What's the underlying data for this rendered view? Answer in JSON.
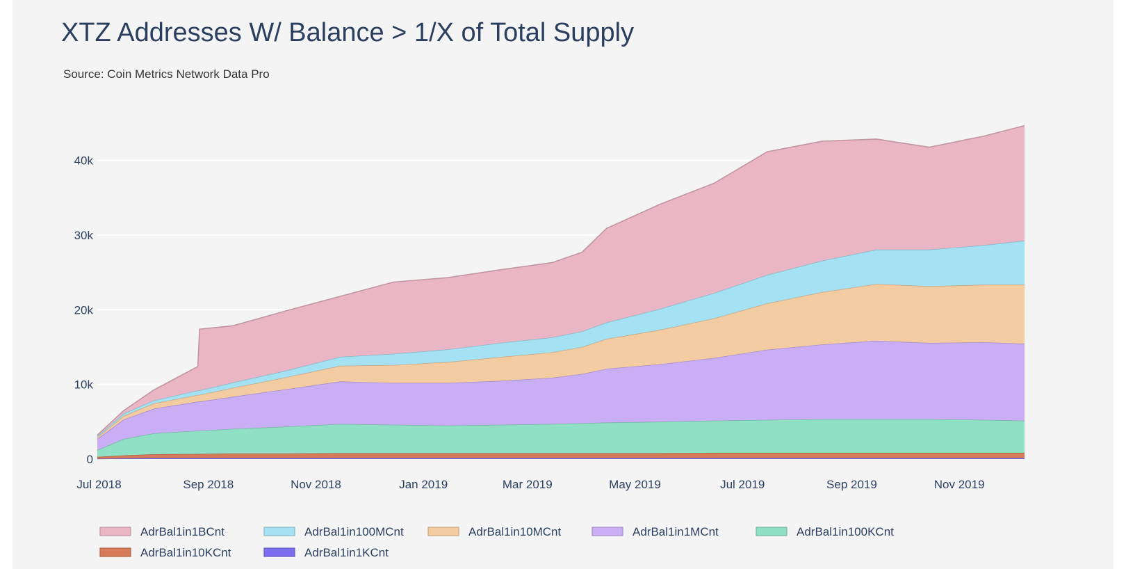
{
  "chart_data": {
    "type": "area",
    "stacked": true,
    "title": "XTZ Addresses W/ Balance > 1/X of Total Supply",
    "subtitle": "Source: Coin Metrics Network Data Pro",
    "xlabel": "",
    "ylabel": "",
    "x_ticks": [
      "Jul 2018",
      "Sep 2018",
      "Nov 2018",
      "Jan 2019",
      "Mar 2019",
      "May 2019",
      "Jul 2019",
      "Sep 2019",
      "Nov 2019"
    ],
    "y_ticks": [
      "0",
      "10k",
      "20k",
      "30k",
      "40k"
    ],
    "y_tick_values": [
      0,
      10000,
      20000,
      30000,
      40000
    ],
    "ylim": [
      0,
      47500
    ],
    "grid": true,
    "legend_position": "bottom",
    "x": [
      "2018-06-30",
      "2018-07-15",
      "2018-08-01",
      "2018-08-26",
      "2018-08-27",
      "2018-09-15",
      "2018-10-15",
      "2018-11-15",
      "2018-12-15",
      "2019-01-15",
      "2019-02-15",
      "2019-03-15",
      "2019-04-01",
      "2019-04-15",
      "2019-05-15",
      "2019-06-15",
      "2019-07-15",
      "2019-08-15",
      "2019-09-15",
      "2019-10-15",
      "2019-11-15",
      "2019-12-08"
    ],
    "series": [
      {
        "name": "AdrBal1in1KCnt",
        "color": "#7b6ff0",
        "values": [
          50,
          100,
          150,
          150,
          150,
          150,
          150,
          150,
          150,
          150,
          150,
          150,
          150,
          150,
          150,
          150,
          150,
          150,
          150,
          150,
          150,
          150
        ]
      },
      {
        "name": "AdrBal1in10KCnt",
        "color": "#d77a57",
        "values": [
          250,
          400,
          500,
          550,
          550,
          600,
          600,
          650,
          650,
          650,
          650,
          650,
          650,
          650,
          650,
          700,
          700,
          700,
          700,
          700,
          700,
          700
        ]
      },
      {
        "name": "AdrBal1in100KCnt",
        "color": "#8fe0c4",
        "values": [
          900,
          2200,
          2800,
          3100,
          3100,
          3300,
          3600,
          3900,
          3800,
          3700,
          3800,
          3900,
          4000,
          4100,
          4200,
          4300,
          4400,
          4500,
          4500,
          4500,
          4400,
          4300
        ]
      },
      {
        "name": "AdrBal1in1MCnt",
        "color": "#c9adf5",
        "values": [
          1500,
          2600,
          3300,
          3900,
          3900,
          4300,
          5000,
          5700,
          5600,
          5700,
          5900,
          6200,
          6600,
          7200,
          7700,
          8400,
          9400,
          10000,
          10500,
          10200,
          10400,
          10300
        ]
      },
      {
        "name": "AdrBal1in10MCnt",
        "color": "#f4cca2",
        "values": [
          200,
          500,
          700,
          900,
          900,
          1200,
          1600,
          2100,
          2400,
          2800,
          3200,
          3400,
          3600,
          4000,
          4600,
          5300,
          6200,
          7000,
          7600,
          7600,
          7700,
          7900
        ]
      },
      {
        "name": "AdrBal1in100MCnt",
        "color": "#a3e1f3",
        "values": [
          150,
          300,
          400,
          600,
          600,
          700,
          900,
          1200,
          1500,
          1700,
          1900,
          2000,
          2100,
          2200,
          2800,
          3400,
          3800,
          4200,
          4600,
          4900,
          5300,
          5900
        ]
      },
      {
        "name": "AdrBal1in1BCnt",
        "color": "#eab6c5",
        "values": [
          150,
          400,
          1400,
          3200,
          8200,
          7600,
          8000,
          8100,
          9600,
          9600,
          9800,
          10000,
          10600,
          12600,
          14000,
          14700,
          16500,
          16000,
          14800,
          13700,
          14600,
          15400
        ]
      }
    ]
  }
}
